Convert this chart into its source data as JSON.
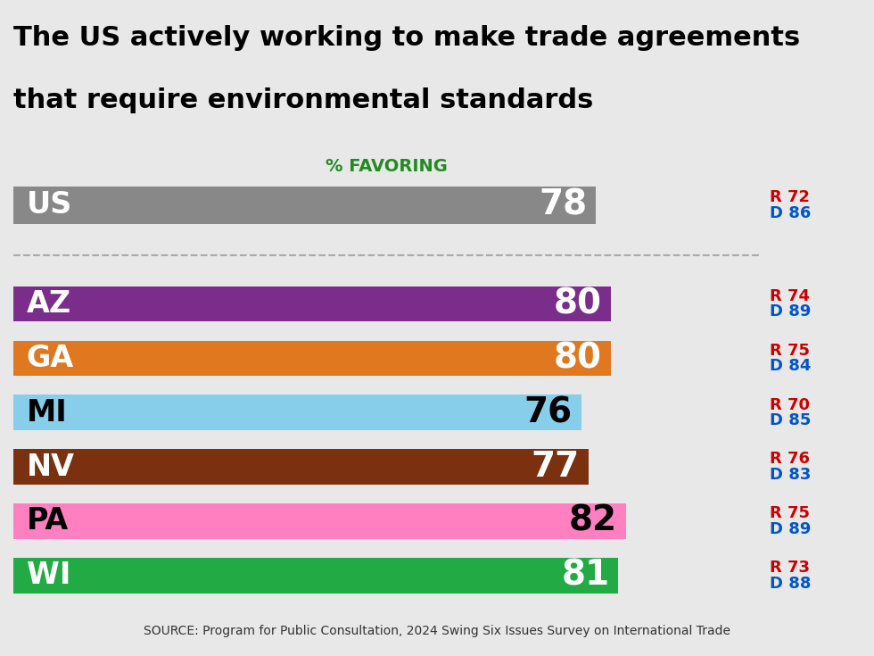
{
  "title_line1": "The US actively working to make trade agreements",
  "title_line2": "that require environmental standards",
  "subtitle": "% FAVORING",
  "source": "SOURCE: Program for Public Consultation, 2024 Swing Six Issues Survey on International Trade",
  "background_color": "#e8e8e8",
  "plot_background": "#ffffff",
  "bars": [
    {
      "label": "US",
      "value": 78,
      "color": "#888888",
      "r": 72,
      "d": 86,
      "light": false
    },
    {
      "label": "AZ",
      "value": 80,
      "color": "#7B2D8B",
      "r": 74,
      "d": 89,
      "light": false
    },
    {
      "label": "GA",
      "value": 80,
      "color": "#E07820",
      "r": 75,
      "d": 84,
      "light": false
    },
    {
      "label": "MI",
      "value": 76,
      "color": "#87CEEB",
      "r": 70,
      "d": 85,
      "light": true
    },
    {
      "label": "NV",
      "value": 77,
      "color": "#7B3010",
      "r": 76,
      "d": 83,
      "light": false
    },
    {
      "label": "PA",
      "value": 82,
      "color": "#FF80C0",
      "r": 75,
      "d": 89,
      "light": true
    },
    {
      "label": "WI",
      "value": 81,
      "color": "#22AA44",
      "r": 73,
      "d": 88,
      "light": false
    }
  ],
  "bar_max": 88,
  "label_fontsize": 24,
  "value_fontsize": 28,
  "rd_fontsize": 13,
  "subtitle_fontsize": 14,
  "title_fontsize": 22,
  "source_fontsize": 10,
  "r_color": "#cc0000",
  "d_color": "#0055cc"
}
